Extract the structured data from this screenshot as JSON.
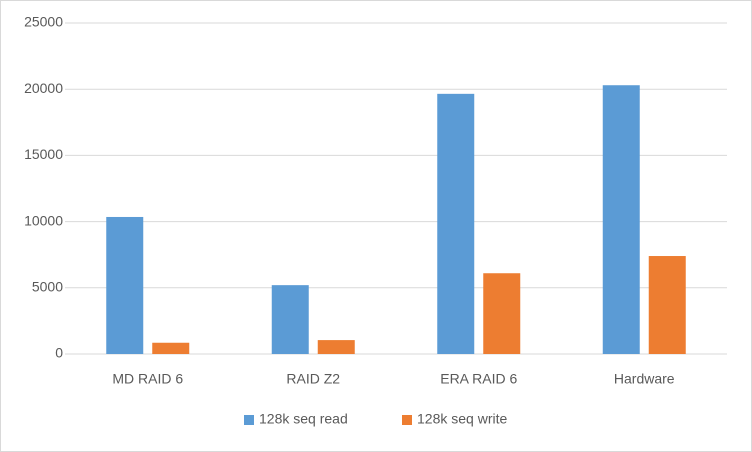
{
  "chart_data": {
    "type": "bar",
    "categories": [
      "MD RAID 6",
      "RAID Z2",
      "ERA RAID 6",
      "Hardware"
    ],
    "series": [
      {
        "name": "128k seq read",
        "color": "#5b9bd5",
        "values": [
          10350,
          5200,
          19650,
          20300
        ]
      },
      {
        "name": "128k seq write",
        "color": "#ed7d31",
        "values": [
          850,
          1050,
          6100,
          7400
        ]
      }
    ],
    "ylim": [
      0,
      25000
    ],
    "yticks": [
      0,
      5000,
      10000,
      15000,
      20000,
      25000
    ],
    "grid": true,
    "legend": "bottom"
  }
}
